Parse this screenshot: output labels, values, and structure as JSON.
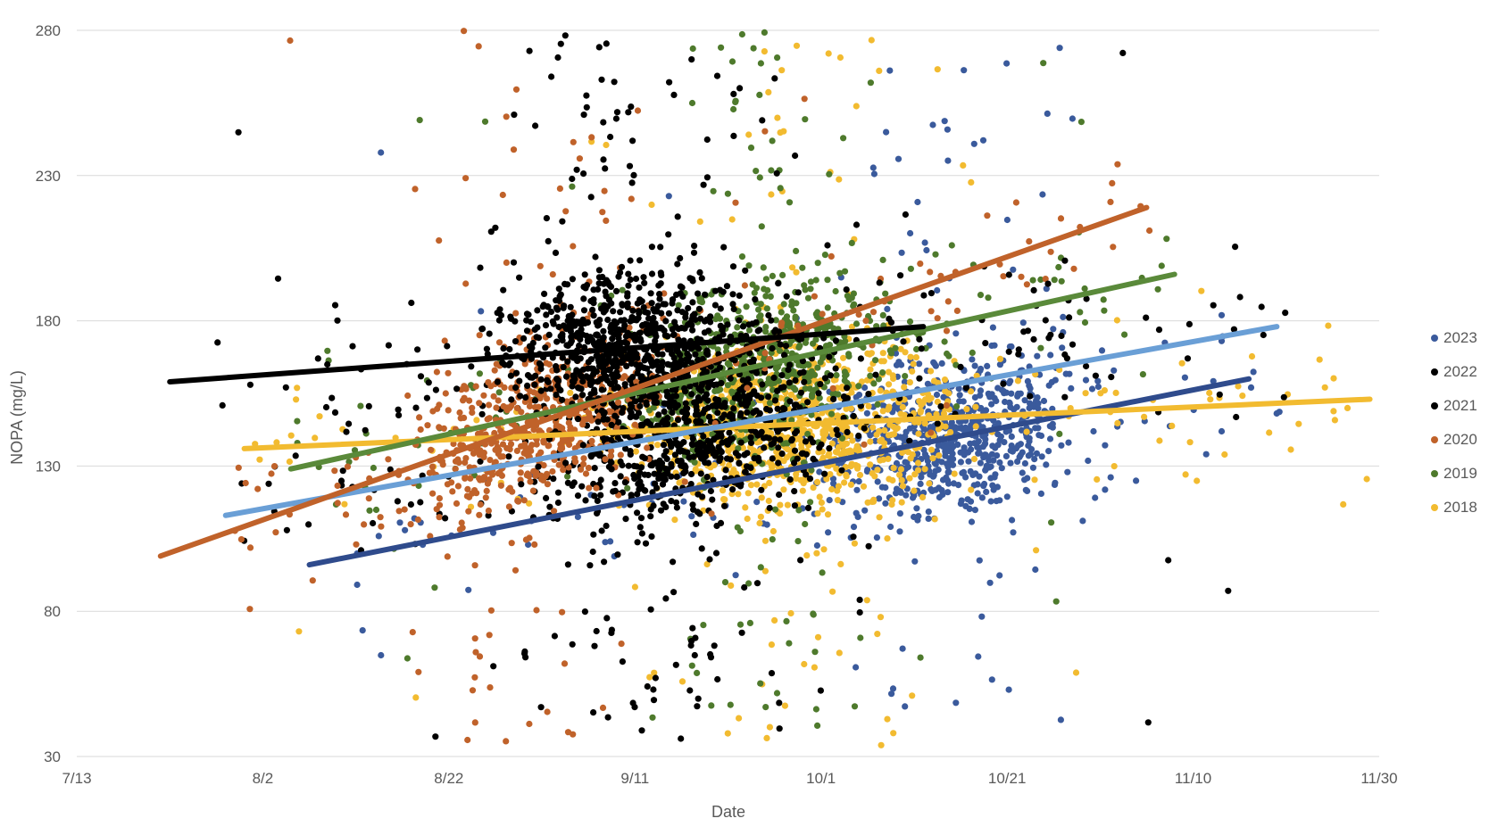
{
  "chart_data": {
    "type": "scatter",
    "xlabel": "Date",
    "ylabel": "NOPA (mg/L)",
    "x_range": [
      "2000-07-13",
      "2000-11-30"
    ],
    "ylim": [
      30,
      280
    ],
    "x_ticks": [
      {
        "date": "2000-07-13",
        "label": "7/13"
      },
      {
        "date": "2000-08-02",
        "label": "8/2"
      },
      {
        "date": "2000-08-22",
        "label": "8/22"
      },
      {
        "date": "2000-09-11",
        "label": "9/11"
      },
      {
        "date": "2000-10-01",
        "label": "10/1"
      },
      {
        "date": "2000-10-21",
        "label": "10/21"
      },
      {
        "date": "2000-11-10",
        "label": "11/10"
      },
      {
        "date": "2000-11-30",
        "label": "11/30"
      }
    ],
    "y_ticks": [
      30,
      80,
      130,
      180,
      230,
      280
    ],
    "grid": "horizontal",
    "legend_position": "right",
    "series": [
      {
        "name": "2023",
        "color": "#3a5a9c",
        "trend_color": "#2f4b8c",
        "trend": [
          {
            "date": "2000-08-07",
            "y": 96
          },
          {
            "date": "2000-11-16",
            "y": 160
          }
        ],
        "cloud": {
          "start": "2000-08-10",
          "end": "2000-11-20",
          "peak": "2000-10-15",
          "ymin": 32,
          "ymax": 278,
          "count": 750
        }
      },
      {
        "name": "2022",
        "color": "#000000",
        "trend_color": "#000000",
        "trend": [
          {
            "date": "2000-07-23",
            "y": 159
          },
          {
            "date": "2000-10-12",
            "y": 178
          }
        ],
        "cloud": {
          "start": "2000-07-26",
          "end": "2000-10-28",
          "peak": "2000-09-10",
          "ymin": 35,
          "ymax": 280,
          "count": 900
        }
      },
      {
        "name": "2021",
        "color": "#000000",
        "trend_color": "#6a9fd6",
        "trend": [
          {
            "date": "2000-07-29",
            "y": 113
          },
          {
            "date": "2000-11-19",
            "y": 178
          }
        ],
        "cloud": {
          "start": "2000-07-28",
          "end": "2000-11-20",
          "peak": "2000-09-18",
          "ymin": 33,
          "ymax": 275,
          "count": 800
        }
      },
      {
        "name": "2020",
        "color": "#c0622a",
        "trend_color": "#c0622a",
        "trend": [
          {
            "date": "2000-07-22",
            "y": 99
          },
          {
            "date": "2000-11-05",
            "y": 219
          }
        ],
        "cloud": {
          "start": "2000-07-30",
          "end": "2000-11-06",
          "peak": "2000-09-01",
          "ymin": 34,
          "ymax": 280,
          "count": 700
        }
      },
      {
        "name": "2019",
        "color": "#4e7a2c",
        "trend_color": "#5a8a3a",
        "trend": [
          {
            "date": "2000-08-05",
            "y": 129
          },
          {
            "date": "2000-11-08",
            "y": 196
          }
        ],
        "cloud": {
          "start": "2000-08-05",
          "end": "2000-11-08",
          "peak": "2000-09-25",
          "ymin": 40,
          "ymax": 280,
          "count": 750
        }
      },
      {
        "name": "2018",
        "color": "#f2bb30",
        "trend_color": "#f2bb30",
        "trend": [
          {
            "date": "2000-07-31",
            "y": 136
          },
          {
            "date": "2000-11-29",
            "y": 153
          }
        ],
        "cloud": {
          "start": "2000-07-31",
          "end": "2000-11-29",
          "peak": "2000-09-28",
          "ymin": 33,
          "ymax": 280,
          "count": 1000
        }
      }
    ]
  }
}
